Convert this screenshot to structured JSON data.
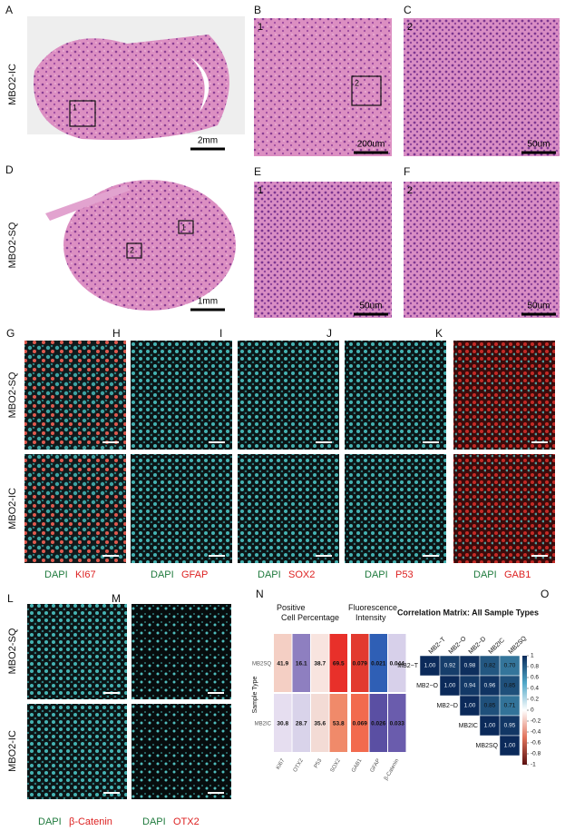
{
  "he_panels": [
    {
      "letter": "A",
      "sample": "MBO2-IC",
      "boxes": [
        "1"
      ],
      "scale": "2mm"
    },
    {
      "letter": "B",
      "corner": "1",
      "boxes": [
        "2"
      ],
      "scale": "200um"
    },
    {
      "letter": "C",
      "corner": "2",
      "scale": "50um"
    },
    {
      "letter": "D",
      "sample": "MBO2-SQ",
      "boxes": [
        "1",
        "2"
      ],
      "scale": "1mm"
    },
    {
      "letter": "E",
      "corner": "1",
      "scale": "50um"
    },
    {
      "letter": "F",
      "corner": "2",
      "scale": "50um"
    }
  ],
  "if_panels": {
    "rows": [
      "MBO2-SQ",
      "MBO2-IC"
    ],
    "markers": [
      {
        "letter": "G",
        "stain": "DAPI",
        "marker": "KI67"
      },
      {
        "letter": "H",
        "stain": "DAPI",
        "marker": "GFAP"
      },
      {
        "letter": "I",
        "stain": "DAPI",
        "marker": "SOX2"
      },
      {
        "letter": "J",
        "stain": "DAPI",
        "marker": "P53"
      },
      {
        "letter": "K",
        "stain": "DAPI",
        "marker": "GAB1"
      }
    ]
  },
  "lm_panels": {
    "rows": [
      "MBO2-SQ",
      "MBO2-IC"
    ],
    "markers": [
      {
        "letter": "L",
        "stain": "DAPI",
        "marker": "β-Catenin"
      },
      {
        "letter": "M",
        "stain": "DAPI",
        "marker": "OTX2"
      }
    ]
  },
  "heatmap_n": {
    "letter": "N",
    "group_titles": [
      "Positive Cell Percentage",
      "Fluorescence Intensity"
    ],
    "y_label": "Sample Type",
    "rows": [
      "MB2SQ",
      "MB2IC"
    ],
    "columns": [
      "KI67",
      "OTX2",
      "P53",
      "SOX2",
      "GAB1",
      "GFAP",
      "β-Catenin"
    ],
    "values": [
      [
        41.9,
        16.1,
        38.7,
        69.5,
        0.079,
        0.021,
        0.044
      ],
      [
        30.8,
        28.7,
        35.6,
        53.8,
        0.069,
        0.026,
        0.033
      ]
    ],
    "colors": [
      [
        "#f4cfc4",
        "#8e7fc0",
        "#f8e4df",
        "#e8302a",
        "#e23a2f",
        "#2f5fb5",
        "#d7d0ea"
      ],
      [
        "#e6def0",
        "#d9d3ea",
        "#f3dbd5",
        "#f08a6a",
        "#f26a4e",
        "#5a4fa3",
        "#6a5cad"
      ]
    ]
  },
  "correlation_o": {
    "letter": "O",
    "title": "Correlation Matrix: All Sample Types",
    "labels": [
      "MB2−T",
      "MB2−O",
      "MB2−D",
      "MB2IC",
      "MB2SQ"
    ],
    "values": [
      [
        1,
        0.92,
        0.98,
        0.82,
        0.7
      ],
      [
        1,
        0.94,
        0.96,
        0.85
      ],
      [
        1,
        0.85,
        0.71
      ],
      [
        1,
        0.95
      ],
      [
        1
      ]
    ],
    "value_labels": [
      [
        "1.00",
        "0.92",
        "0.98",
        "0.82",
        "0.70"
      ],
      [
        "1.00",
        "0.94",
        "0.96",
        "0.85"
      ],
      [
        "1.00",
        "0.85",
        "0.71"
      ],
      [
        "1.00",
        "0.95"
      ],
      [
        "1.00"
      ]
    ],
    "clim": [
      -1,
      1
    ],
    "cticks": [
      1,
      0.8,
      0.6,
      0.4,
      0.2,
      0,
      -0.2,
      -0.4,
      -0.6,
      -0.8,
      -1
    ]
  }
}
